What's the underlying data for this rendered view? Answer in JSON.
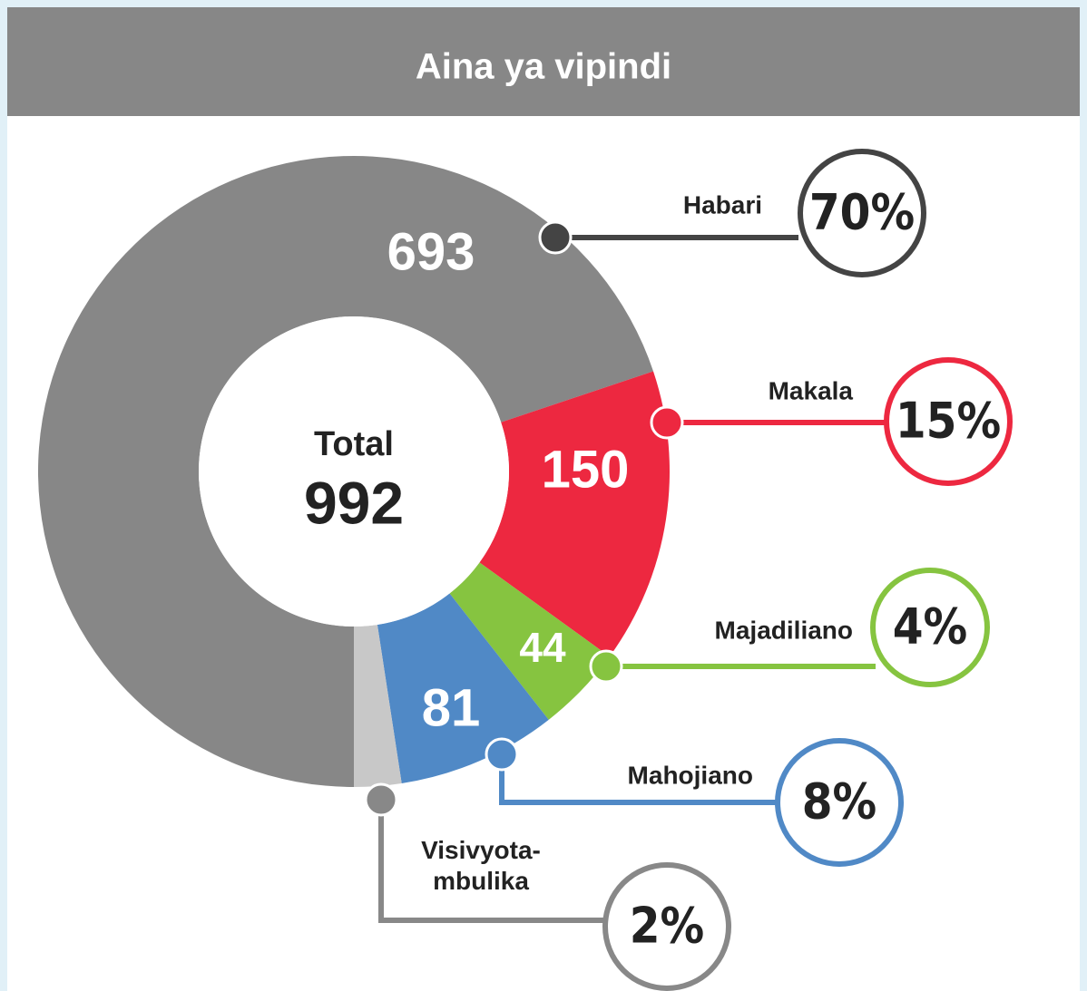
{
  "chart_data": {
    "type": "donut",
    "title": "Aina ya vipindi",
    "center_label": "Total",
    "center_value": 992,
    "categories": [
      "Habari",
      "Makala",
      "Majadiliano",
      "Mahojiano",
      "Visivyota-\nmbulika"
    ],
    "values": [
      693,
      150,
      44,
      81,
      24
    ],
    "value_labels": [
      "693",
      "150",
      "44",
      "81",
      null
    ],
    "percent_labels": [
      "70%",
      "15%",
      "4%",
      "8%",
      "2%"
    ],
    "colors": [
      "#878787",
      "#ed2840",
      "#86c440",
      "#5089c6",
      "#c8c8c8"
    ],
    "callout_colors": [
      "#444444",
      "#ed2840",
      "#86c440",
      "#5089c6",
      "#888888"
    ]
  }
}
